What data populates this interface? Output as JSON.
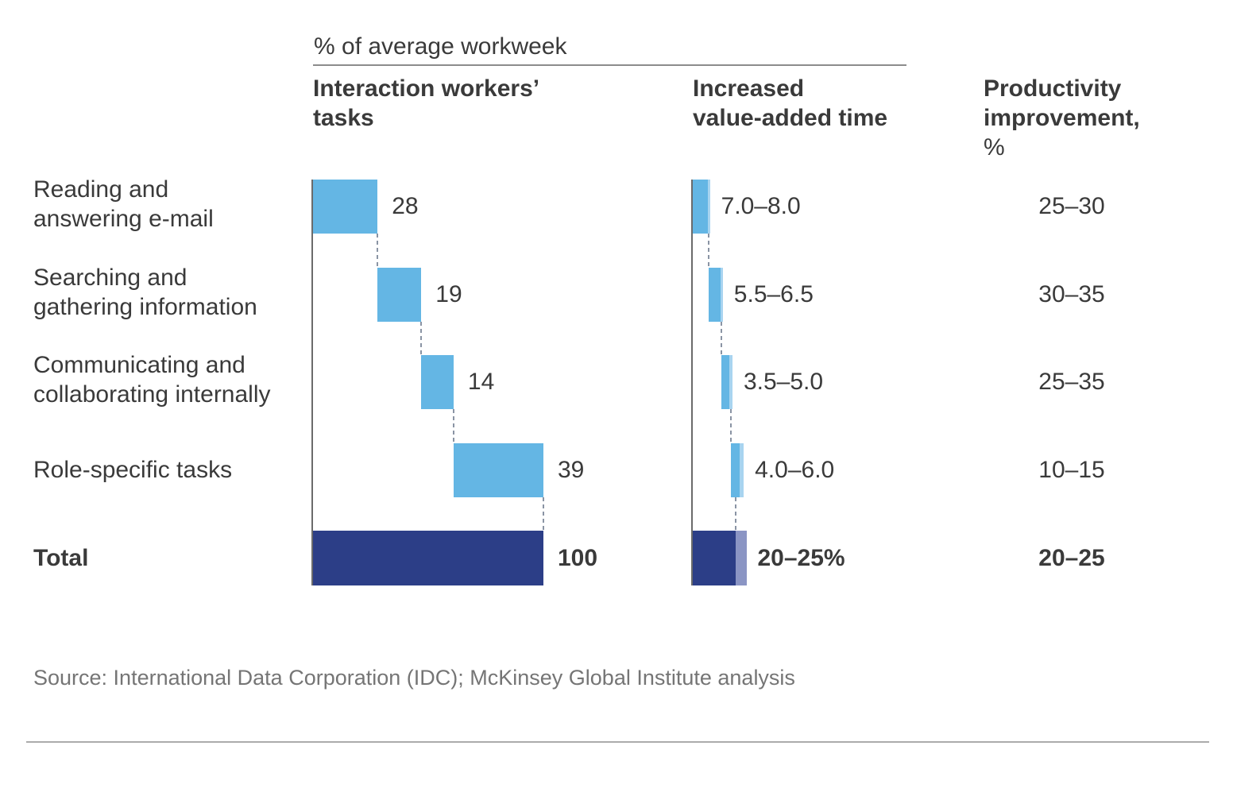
{
  "title": "% of average workweek",
  "headers": {
    "tasks": {
      "line1": "Interaction workers’",
      "line2": "tasks"
    },
    "value_added": {
      "line1": "Increased",
      "line2": "value-added time"
    },
    "productivity": {
      "line1": "Productivity",
      "line2": "improvement,",
      "line3": "%"
    }
  },
  "rows": [
    {
      "label_line1": "Reading and",
      "label_line2": "answering e-mail",
      "tasks": "28",
      "value_added": "7.0–8.0",
      "productivity": "25–30"
    },
    {
      "label_line1": "Searching and",
      "label_line2": "gathering information",
      "tasks": "19",
      "value_added": "5.5–6.5",
      "productivity": "30–35"
    },
    {
      "label_line1": "Communicating and",
      "label_line2": "collaborating internally",
      "tasks": "14",
      "value_added": "3.5–5.0",
      "productivity": "25–35"
    },
    {
      "label_line1": "Role-specific tasks",
      "label_line2": "",
      "tasks": "39",
      "value_added": "4.0–6.0",
      "productivity": "10–15"
    }
  ],
  "total": {
    "label": "Total",
    "tasks": "100",
    "value_added": "20–25%",
    "productivity": "20–25"
  },
  "source": "Source: International Data Corporation (IDC); McKinsey Global Institute analysis",
  "colors": {
    "bar_light_blue": "#64B6E4",
    "bar_light_blue_range": "#A8D4F0",
    "bar_navy": "#2C3E87",
    "bar_navy_range": "#8B95C4",
    "text_dark": "#3A3A3A",
    "text_source": "#757575",
    "axis_gray": "#6B6B6B",
    "dash_gray": "#8A94A4",
    "rule_gray": "#8C8C8C"
  },
  "chart_data": {
    "type": "bar",
    "variant": "horizontal cascade waterfall, two linked bar columns plus value column",
    "title": "% of average workweek",
    "categories": [
      "Reading and answering e-mail",
      "Searching and gathering information",
      "Communicating and collaborating internally",
      "Role-specific tasks",
      "Total"
    ],
    "series": [
      {
        "name": "Interaction workers’ tasks",
        "values": [
          28,
          19,
          14,
          39
        ],
        "total": 100,
        "labels": [
          "28",
          "19",
          "14",
          "39"
        ],
        "total_label": "100"
      },
      {
        "name": "Increased value-added time",
        "low": [
          7.0,
          5.5,
          3.5,
          4.0
        ],
        "high": [
          8.0,
          6.5,
          5.0,
          6.0
        ],
        "total_low": 20,
        "total_high": 25,
        "labels": [
          "7.0–8.0",
          "5.5–6.5",
          "3.5–5.0",
          "4.0–6.0"
        ],
        "total_label": "20–25%"
      },
      {
        "name": "Productivity improvement, %",
        "low": [
          25,
          30,
          25,
          10
        ],
        "high": [
          30,
          35,
          35,
          15
        ],
        "total_low": 20,
        "total_high": 25,
        "labels": [
          "25–30",
          "30–35",
          "25–35",
          "10–15"
        ],
        "total_label": "20–25"
      }
    ],
    "axis_range": [
      0,
      100
    ],
    "grid": false,
    "legend": false
  }
}
